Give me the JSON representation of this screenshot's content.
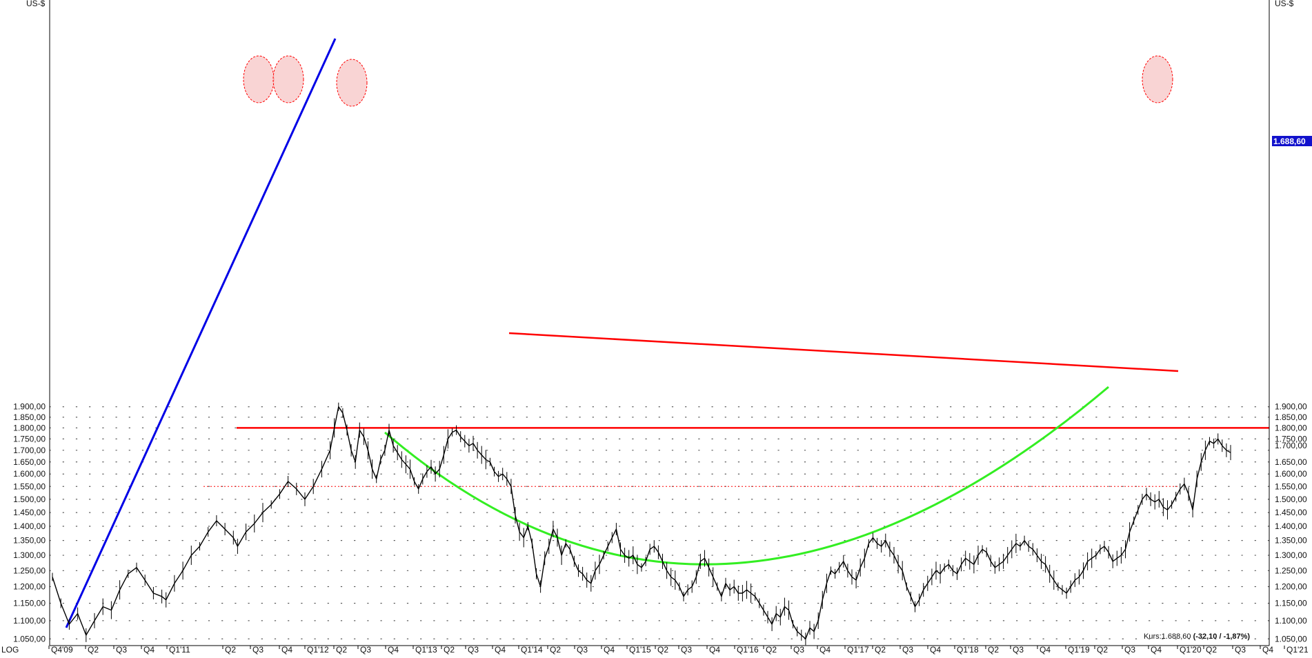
{
  "chart_data": {
    "type": "line",
    "scale": "log",
    "unit_left": "US-$",
    "unit_right": "US-$",
    "scale_label": "LOG",
    "ylim": [
      1030,
      1960
    ],
    "y_ticks": [
      {
        "value": 1900,
        "label": "1.900,00"
      },
      {
        "value": 1850,
        "label": "1.850,00"
      },
      {
        "value": 1800,
        "label": "1.800,00"
      },
      {
        "value": 1750,
        "label": "1.750,00"
      },
      {
        "value": 1700,
        "label": "1.700,00"
      },
      {
        "value": 1650,
        "label": "1.650,00"
      },
      {
        "value": 1600,
        "label": "1.600,00"
      },
      {
        "value": 1550,
        "label": "1.550,00"
      },
      {
        "value": 1500,
        "label": "1.500,00"
      },
      {
        "value": 1450,
        "label": "1.450,00"
      },
      {
        "value": 1400,
        "label": "1.400,00"
      },
      {
        "value": 1350,
        "label": "1.350,00"
      },
      {
        "value": 1300,
        "label": "1.300,00"
      },
      {
        "value": 1250,
        "label": "1.250,00"
      },
      {
        "value": 1200,
        "label": "1.200,00"
      },
      {
        "value": 1150,
        "label": "1.150,00"
      },
      {
        "value": 1100,
        "label": "1.100,00"
      },
      {
        "value": 1050,
        "label": "1.050,00"
      }
    ],
    "right_ticks_hidden": [
      1700
    ],
    "x_ticks": [
      "Q4'09",
      "Q2",
      "Q3",
      "Q4",
      "Q1'11",
      "Q2",
      "Q3",
      "Q4",
      "Q1'12",
      "Q2",
      "Q3",
      "Q4",
      "Q1'13",
      "Q2",
      "Q3",
      "Q4",
      "Q1'14",
      "Q2",
      "Q3",
      "Q4",
      "Q1'15",
      "Q2",
      "Q3",
      "Q4",
      "Q1'16",
      "Q2",
      "Q3",
      "Q4",
      "Q1'17",
      "Q2",
      "Q3",
      "Q4",
      "Q1'18",
      "Q2",
      "Q3",
      "Q4",
      "Q1'19",
      "Q2",
      "Q3",
      "Q4",
      "Q1'20",
      "Q2",
      "Q3",
      "Q4",
      "Q1'21"
    ],
    "series": [
      {
        "values": [
          [
            0,
            1230
          ],
          [
            2,
            1150
          ],
          [
            4,
            1090
          ],
          [
            6,
            1120
          ],
          [
            8,
            1060
          ],
          [
            10,
            1100
          ],
          [
            12,
            1140
          ],
          [
            14,
            1130
          ],
          [
            16,
            1190
          ],
          [
            18,
            1240
          ],
          [
            20,
            1260
          ],
          [
            22,
            1220
          ],
          [
            24,
            1180
          ],
          [
            26,
            1170
          ],
          [
            27,
            1160
          ],
          [
            29,
            1210
          ],
          [
            31,
            1250
          ],
          [
            33,
            1300
          ],
          [
            35,
            1330
          ],
          [
            37,
            1380
          ],
          [
            39,
            1420
          ],
          [
            41,
            1390
          ],
          [
            43,
            1360
          ],
          [
            44,
            1330
          ],
          [
            46,
            1380
          ],
          [
            48,
            1410
          ],
          [
            50,
            1450
          ],
          [
            52,
            1480
          ],
          [
            54,
            1520
          ],
          [
            56,
            1570
          ],
          [
            58,
            1540
          ],
          [
            60,
            1500
          ],
          [
            62,
            1550
          ],
          [
            64,
            1620
          ],
          [
            66,
            1700
          ],
          [
            67,
            1800
          ],
          [
            68,
            1900
          ],
          [
            69,
            1870
          ],
          [
            70,
            1790
          ],
          [
            71,
            1700
          ],
          [
            72,
            1650
          ],
          [
            73,
            1790
          ],
          [
            74,
            1760
          ],
          [
            75,
            1700
          ],
          [
            76,
            1620
          ],
          [
            77,
            1580
          ],
          [
            78,
            1660
          ],
          [
            79,
            1700
          ],
          [
            80,
            1790
          ],
          [
            81,
            1720
          ],
          [
            82,
            1690
          ],
          [
            83,
            1660
          ],
          [
            84,
            1640
          ],
          [
            85,
            1620
          ],
          [
            86,
            1570
          ],
          [
            87,
            1540
          ],
          [
            88,
            1580
          ],
          [
            89,
            1610
          ],
          [
            90,
            1630
          ],
          [
            91,
            1600
          ],
          [
            92,
            1620
          ],
          [
            93,
            1680
          ],
          [
            94,
            1750
          ],
          [
            95,
            1780
          ],
          [
            96,
            1790
          ],
          [
            97,
            1760
          ],
          [
            98,
            1740
          ],
          [
            99,
            1720
          ],
          [
            100,
            1730
          ],
          [
            101,
            1700
          ],
          [
            102,
            1680
          ],
          [
            103,
            1660
          ],
          [
            104,
            1650
          ],
          [
            105,
            1610
          ],
          [
            106,
            1590
          ],
          [
            107,
            1600
          ],
          [
            108,
            1580
          ],
          [
            109,
            1550
          ],
          [
            110,
            1440
          ],
          [
            111,
            1380
          ],
          [
            112,
            1360
          ],
          [
            113,
            1400
          ],
          [
            114,
            1340
          ],
          [
            115,
            1240
          ],
          [
            116,
            1200
          ],
          [
            117,
            1290
          ],
          [
            118,
            1330
          ],
          [
            119,
            1390
          ],
          [
            120,
            1360
          ],
          [
            121,
            1300
          ],
          [
            122,
            1340
          ],
          [
            123,
            1320
          ],
          [
            124,
            1280
          ],
          [
            125,
            1250
          ],
          [
            126,
            1240
          ],
          [
            127,
            1220
          ],
          [
            128,
            1210
          ],
          [
            129,
            1250
          ],
          [
            130,
            1270
          ],
          [
            131,
            1300
          ],
          [
            132,
            1330
          ],
          [
            133,
            1360
          ],
          [
            134,
            1390
          ],
          [
            135,
            1320
          ],
          [
            136,
            1300
          ],
          [
            137,
            1290
          ],
          [
            138,
            1300
          ],
          [
            139,
            1270
          ],
          [
            140,
            1260
          ],
          [
            141,
            1280
          ],
          [
            142,
            1320
          ],
          [
            143,
            1330
          ],
          [
            144,
            1310
          ],
          [
            145,
            1280
          ],
          [
            146,
            1250
          ],
          [
            147,
            1230
          ],
          [
            148,
            1220
          ],
          [
            149,
            1200
          ],
          [
            150,
            1170
          ],
          [
            151,
            1190
          ],
          [
            152,
            1200
          ],
          [
            153,
            1230
          ],
          [
            154,
            1280
          ],
          [
            155,
            1290
          ],
          [
            156,
            1260
          ],
          [
            157,
            1230
          ],
          [
            158,
            1200
          ],
          [
            159,
            1170
          ],
          [
            160,
            1210
          ],
          [
            161,
            1190
          ],
          [
            162,
            1200
          ],
          [
            163,
            1180
          ],
          [
            164,
            1180
          ],
          [
            165,
            1190
          ],
          [
            166,
            1180
          ],
          [
            167,
            1170
          ],
          [
            168,
            1150
          ],
          [
            169,
            1130
          ],
          [
            170,
            1110
          ],
          [
            171,
            1090
          ],
          [
            172,
            1120
          ],
          [
            173,
            1110
          ],
          [
            174,
            1140
          ],
          [
            175,
            1130
          ],
          [
            176,
            1090
          ],
          [
            177,
            1070
          ],
          [
            178,
            1060
          ],
          [
            179,
            1050
          ],
          [
            180,
            1080
          ],
          [
            181,
            1070
          ],
          [
            182,
            1100
          ],
          [
            183,
            1160
          ],
          [
            184,
            1210
          ],
          [
            185,
            1250
          ],
          [
            186,
            1240
          ],
          [
            187,
            1260
          ],
          [
            188,
            1280
          ],
          [
            189,
            1250
          ],
          [
            190,
            1230
          ],
          [
            191,
            1220
          ],
          [
            192,
            1260
          ],
          [
            193,
            1290
          ],
          [
            194,
            1340
          ],
          [
            195,
            1360
          ],
          [
            196,
            1340
          ],
          [
            197,
            1330
          ],
          [
            198,
            1350
          ],
          [
            199,
            1320
          ],
          [
            200,
            1300
          ],
          [
            201,
            1270
          ],
          [
            202,
            1250
          ],
          [
            203,
            1200
          ],
          [
            204,
            1170
          ],
          [
            205,
            1140
          ],
          [
            206,
            1160
          ],
          [
            207,
            1190
          ],
          [
            208,
            1210
          ],
          [
            209,
            1230
          ],
          [
            210,
            1250
          ],
          [
            211,
            1240
          ],
          [
            212,
            1260
          ],
          [
            213,
            1270
          ],
          [
            214,
            1250
          ],
          [
            215,
            1240
          ],
          [
            216,
            1270
          ],
          [
            217,
            1290
          ],
          [
            218,
            1280
          ],
          [
            219,
            1270
          ],
          [
            220,
            1300
          ],
          [
            221,
            1320
          ],
          [
            222,
            1310
          ],
          [
            223,
            1280
          ],
          [
            224,
            1260
          ],
          [
            225,
            1270
          ],
          [
            226,
            1280
          ],
          [
            227,
            1300
          ],
          [
            228,
            1320
          ],
          [
            229,
            1340
          ],
          [
            230,
            1330
          ],
          [
            231,
            1350
          ],
          [
            232,
            1330
          ],
          [
            233,
            1320
          ],
          [
            234,
            1300
          ],
          [
            235,
            1280
          ],
          [
            236,
            1270
          ],
          [
            237,
            1240
          ],
          [
            238,
            1220
          ],
          [
            239,
            1200
          ],
          [
            240,
            1190
          ],
          [
            241,
            1180
          ],
          [
            242,
            1200
          ],
          [
            243,
            1220
          ],
          [
            244,
            1230
          ],
          [
            245,
            1250
          ],
          [
            246,
            1280
          ],
          [
            247,
            1290
          ],
          [
            248,
            1300
          ],
          [
            249,
            1320
          ],
          [
            250,
            1330
          ],
          [
            251,
            1310
          ],
          [
            252,
            1280
          ],
          [
            253,
            1290
          ],
          [
            254,
            1300
          ],
          [
            255,
            1320
          ],
          [
            256,
            1380
          ],
          [
            257,
            1420
          ],
          [
            258,
            1460
          ],
          [
            259,
            1500
          ],
          [
            260,
            1520
          ],
          [
            261,
            1500
          ],
          [
            262,
            1490
          ],
          [
            263,
            1500
          ],
          [
            264,
            1470
          ],
          [
            265,
            1460
          ],
          [
            266,
            1480
          ],
          [
            267,
            1510
          ],
          [
            268,
            1540
          ],
          [
            269,
            1560
          ],
          [
            270,
            1520
          ],
          [
            271,
            1460
          ],
          [
            272,
            1580
          ],
          [
            273,
            1650
          ],
          [
            274,
            1700
          ],
          [
            275,
            1740
          ],
          [
            276,
            1730
          ],
          [
            277,
            1750
          ],
          [
            278,
            1720
          ],
          [
            279,
            1700
          ],
          [
            280,
            1690
          ]
        ]
      }
    ],
    "current_price_label": "1.688,60",
    "footer_text": "Kurs:1.688,60",
    "footer_change": "(-32,10 / -1,87%)"
  },
  "colors": {
    "background": "#ffffff",
    "price_line": "#000000",
    "resistance": "#ff0000",
    "support_trend": "#0000e6",
    "rounded_bottom": "#33ee22",
    "highlight_fill": "#f7c6c6",
    "price_box": "#1111cc",
    "grid_dots": "#555555"
  }
}
